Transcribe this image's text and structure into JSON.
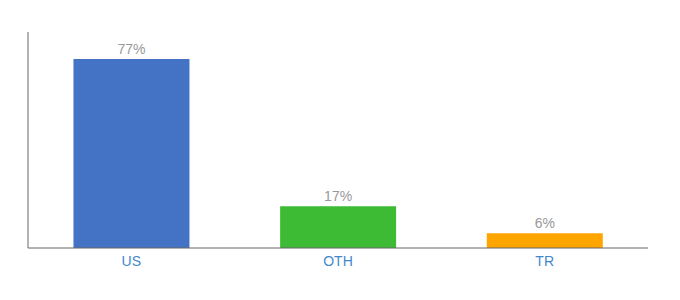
{
  "chart_data": {
    "type": "bar",
    "categories": [
      "US",
      "OTH",
      "TR"
    ],
    "values": [
      77,
      17,
      6
    ],
    "value_labels": [
      "77%",
      "17%",
      "6%"
    ],
    "colors": [
      "#4472c4",
      "#3dbb35",
      "#ffa500"
    ],
    "ylim": [
      0,
      88
    ],
    "data_labels": true,
    "grid": false,
    "tick_labels": "x"
  }
}
